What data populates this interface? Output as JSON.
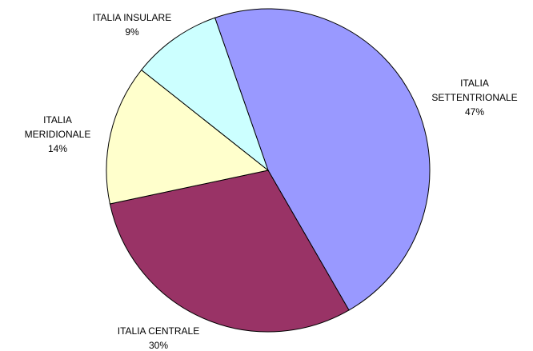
{
  "chart_data": {
    "type": "pie",
    "categories": [
      "ITALIA SETTENTRIONALE",
      "ITALIA CENTRALE",
      "ITALIA MERIDIONALE",
      "ITALIA INSULARE"
    ],
    "values": [
      47,
      30,
      14,
      9
    ],
    "value_labels": [
      "47%",
      "30%",
      "14%",
      "9%"
    ],
    "colors": [
      "#9999ff",
      "#993366",
      "#ffffcc",
      "#ccffff"
    ]
  }
}
